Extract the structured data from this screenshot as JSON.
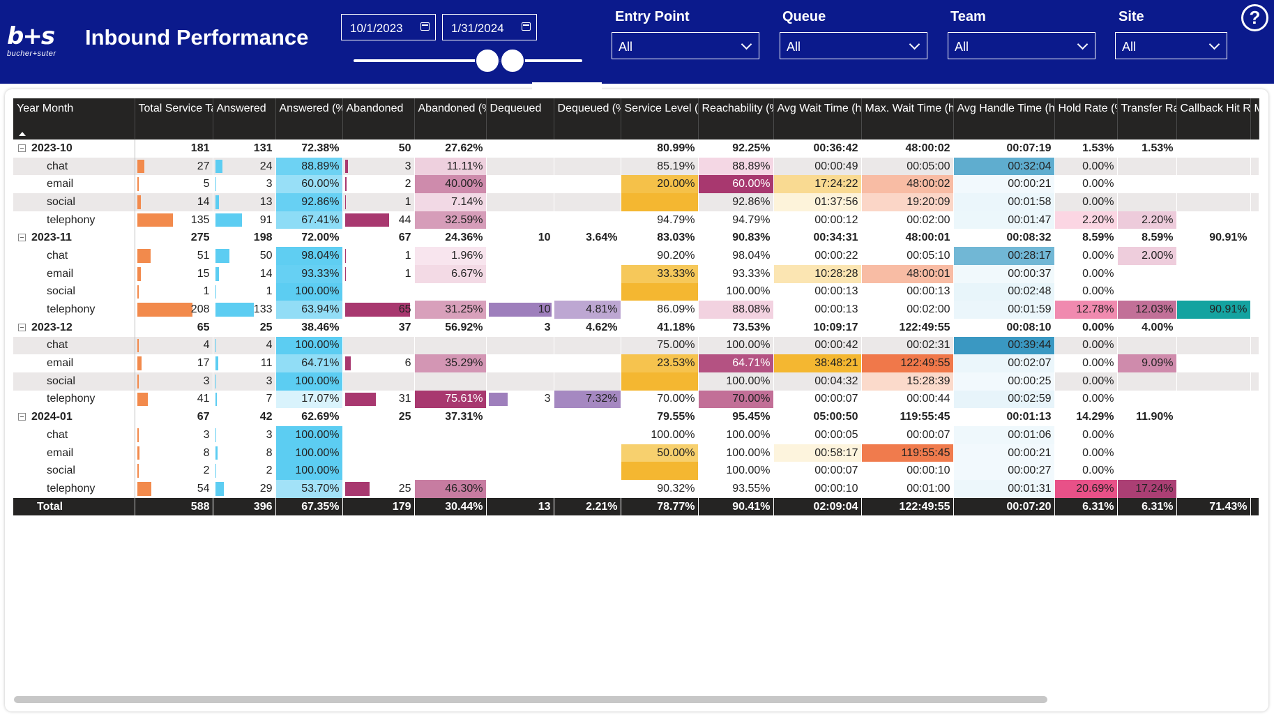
{
  "header": {
    "logo_mark": "b+s",
    "logo_sub": "bucher+suter",
    "title": "Inbound Performance",
    "date_start": "10/1/2023",
    "date_end": "1/31/2024",
    "help_label": "?"
  },
  "filters": [
    {
      "label": "Entry Point",
      "value": "All"
    },
    {
      "label": "Queue",
      "value": "All"
    },
    {
      "label": "Team",
      "value": "All"
    },
    {
      "label": "Site",
      "value": "All"
    }
  ],
  "colors": {
    "header_bg": "#0b1a8c",
    "total_tasks_bar": "#f28a4c",
    "answered_bar": "#5ccdf2",
    "abandoned_bar": "#a8386f",
    "dequeued_bar": "#9e7fbc"
  },
  "matrix": {
    "columns": [
      "Year Month",
      "Total Service Tasks",
      "Answered",
      "Answered (%)",
      "Abandoned",
      "Abandoned (%)",
      "Dequeued",
      "Dequeued (%)",
      "Service Level (%)",
      "Reachability (%)",
      "Avg Wait Time (hh:mm:ss)",
      "Max. Wait Time (hh:mm:ss)",
      "Avg Handle Time (hh:mm:ss)",
      "Hold Rate (%)",
      "Transfer Rate (%)",
      "Callback Hit Rate (%)",
      "M R"
    ],
    "rows": [
      {
        "type": "year",
        "label": "2023-10",
        "cells": [
          "181",
          "131",
          "72.38%",
          "50",
          "27.62%",
          "",
          "",
          "80.99%",
          "92.25%",
          "00:36:42",
          "48:00:02",
          "00:07:19",
          "1.53%",
          "1.53%",
          "",
          ""
        ]
      },
      {
        "type": "chan",
        "label": "chat",
        "cells": [
          "27",
          "24",
          "88.89%",
          "3",
          "11.11%",
          "",
          "",
          "85.19%",
          "88.89%",
          "00:00:49",
          "00:05:00",
          "00:32:04",
          "0.00%",
          "",
          "",
          ""
        ]
      },
      {
        "type": "chan",
        "label": "email",
        "cells": [
          "5",
          "3",
          "60.00%",
          "2",
          "40.00%",
          "",
          "",
          "20.00%",
          "60.00%",
          "17:24:22",
          "48:00:02",
          "00:00:21",
          "0.00%",
          "",
          "",
          ""
        ]
      },
      {
        "type": "chan",
        "label": "social",
        "cells": [
          "14",
          "13",
          "92.86%",
          "1",
          "7.14%",
          "",
          "",
          "",
          "92.86%",
          "01:37:56",
          "19:20:09",
          "00:01:58",
          "0.00%",
          "",
          "",
          ""
        ]
      },
      {
        "type": "chan",
        "label": "telephony",
        "cells": [
          "135",
          "91",
          "67.41%",
          "44",
          "32.59%",
          "",
          "",
          "94.79%",
          "94.79%",
          "00:00:12",
          "00:02:00",
          "00:01:47",
          "2.20%",
          "2.20%",
          "",
          ""
        ]
      },
      {
        "type": "year",
        "label": "2023-11",
        "cells": [
          "275",
          "198",
          "72.00%",
          "67",
          "24.36%",
          "10",
          "3.64%",
          "83.03%",
          "90.83%",
          "00:34:31",
          "48:00:01",
          "00:08:32",
          "8.59%",
          "8.59%",
          "90.91%",
          ""
        ]
      },
      {
        "type": "chan",
        "label": "chat",
        "cells": [
          "51",
          "50",
          "98.04%",
          "1",
          "1.96%",
          "",
          "",
          "90.20%",
          "98.04%",
          "00:00:22",
          "00:05:10",
          "00:28:17",
          "0.00%",
          "2.00%",
          "",
          ""
        ]
      },
      {
        "type": "chan",
        "label": "email",
        "cells": [
          "15",
          "14",
          "93.33%",
          "1",
          "6.67%",
          "",
          "",
          "33.33%",
          "93.33%",
          "10:28:28",
          "48:00:01",
          "00:00:37",
          "0.00%",
          "",
          "",
          ""
        ]
      },
      {
        "type": "chan",
        "label": "social",
        "cells": [
          "1",
          "1",
          "100.00%",
          "",
          "",
          "",
          "",
          "",
          "100.00%",
          "00:00:13",
          "00:00:13",
          "00:02:48",
          "0.00%",
          "",
          "",
          ""
        ]
      },
      {
        "type": "chan",
        "label": "telephony",
        "cells": [
          "208",
          "133",
          "63.94%",
          "65",
          "31.25%",
          "10",
          "4.81%",
          "86.09%",
          "88.08%",
          "00:00:13",
          "00:02:00",
          "00:01:59",
          "12.78%",
          "12.03%",
          "90.91%",
          ""
        ]
      },
      {
        "type": "year",
        "label": "2023-12",
        "cells": [
          "65",
          "25",
          "38.46%",
          "37",
          "56.92%",
          "3",
          "4.62%",
          "41.18%",
          "73.53%",
          "10:09:17",
          "122:49:55",
          "00:08:10",
          "0.00%",
          "4.00%",
          "",
          ""
        ]
      },
      {
        "type": "chan",
        "label": "chat",
        "cells": [
          "4",
          "4",
          "100.00%",
          "",
          "",
          "",
          "",
          "75.00%",
          "100.00%",
          "00:00:42",
          "00:02:31",
          "00:39:44",
          "0.00%",
          "",
          "",
          ""
        ]
      },
      {
        "type": "chan",
        "label": "email",
        "cells": [
          "17",
          "11",
          "64.71%",
          "6",
          "35.29%",
          "",
          "",
          "23.53%",
          "64.71%",
          "38:48:21",
          "122:49:55",
          "00:02:07",
          "0.00%",
          "9.09%",
          "",
          ""
        ]
      },
      {
        "type": "chan",
        "label": "social",
        "cells": [
          "3",
          "3",
          "100.00%",
          "",
          "",
          "",
          "",
          "",
          "100.00%",
          "00:04:32",
          "15:28:39",
          "00:00:25",
          "0.00%",
          "",
          "",
          ""
        ]
      },
      {
        "type": "chan",
        "label": "telephony",
        "cells": [
          "41",
          "7",
          "17.07%",
          "31",
          "75.61%",
          "3",
          "7.32%",
          "70.00%",
          "70.00%",
          "00:00:07",
          "00:00:44",
          "00:02:59",
          "0.00%",
          "",
          "",
          ""
        ]
      },
      {
        "type": "year",
        "label": "2024-01",
        "cells": [
          "67",
          "42",
          "62.69%",
          "25",
          "37.31%",
          "",
          "",
          "79.55%",
          "95.45%",
          "05:00:50",
          "119:55:45",
          "00:01:13",
          "14.29%",
          "11.90%",
          "",
          ""
        ]
      },
      {
        "type": "chan",
        "label": "chat",
        "cells": [
          "3",
          "3",
          "100.00%",
          "",
          "",
          "",
          "",
          "100.00%",
          "100.00%",
          "00:00:05",
          "00:00:07",
          "00:01:06",
          "0.00%",
          "",
          "",
          ""
        ]
      },
      {
        "type": "chan",
        "label": "email",
        "cells": [
          "8",
          "8",
          "100.00%",
          "",
          "",
          "",
          "",
          "50.00%",
          "100.00%",
          "00:58:17",
          "119:55:45",
          "00:00:21",
          "0.00%",
          "",
          "",
          ""
        ]
      },
      {
        "type": "chan",
        "label": "social",
        "cells": [
          "2",
          "2",
          "100.00%",
          "",
          "",
          "",
          "",
          "",
          "100.00%",
          "00:00:07",
          "00:00:10",
          "00:00:27",
          "0.00%",
          "",
          "",
          ""
        ]
      },
      {
        "type": "chan",
        "label": "telephony",
        "cells": [
          "54",
          "29",
          "53.70%",
          "25",
          "46.30%",
          "",
          "",
          "90.32%",
          "93.55%",
          "00:00:10",
          "00:01:00",
          "00:01:31",
          "20.69%",
          "17.24%",
          "",
          ""
        ]
      },
      {
        "type": "total",
        "label": "Total",
        "cells": [
          "588",
          "396",
          "67.35%",
          "179",
          "30.44%",
          "13",
          "2.21%",
          "78.77%",
          "90.41%",
          "02:09:04",
          "122:49:55",
          "00:07:20",
          "6.31%",
          "6.31%",
          "71.43%",
          ""
        ]
      }
    ]
  }
}
